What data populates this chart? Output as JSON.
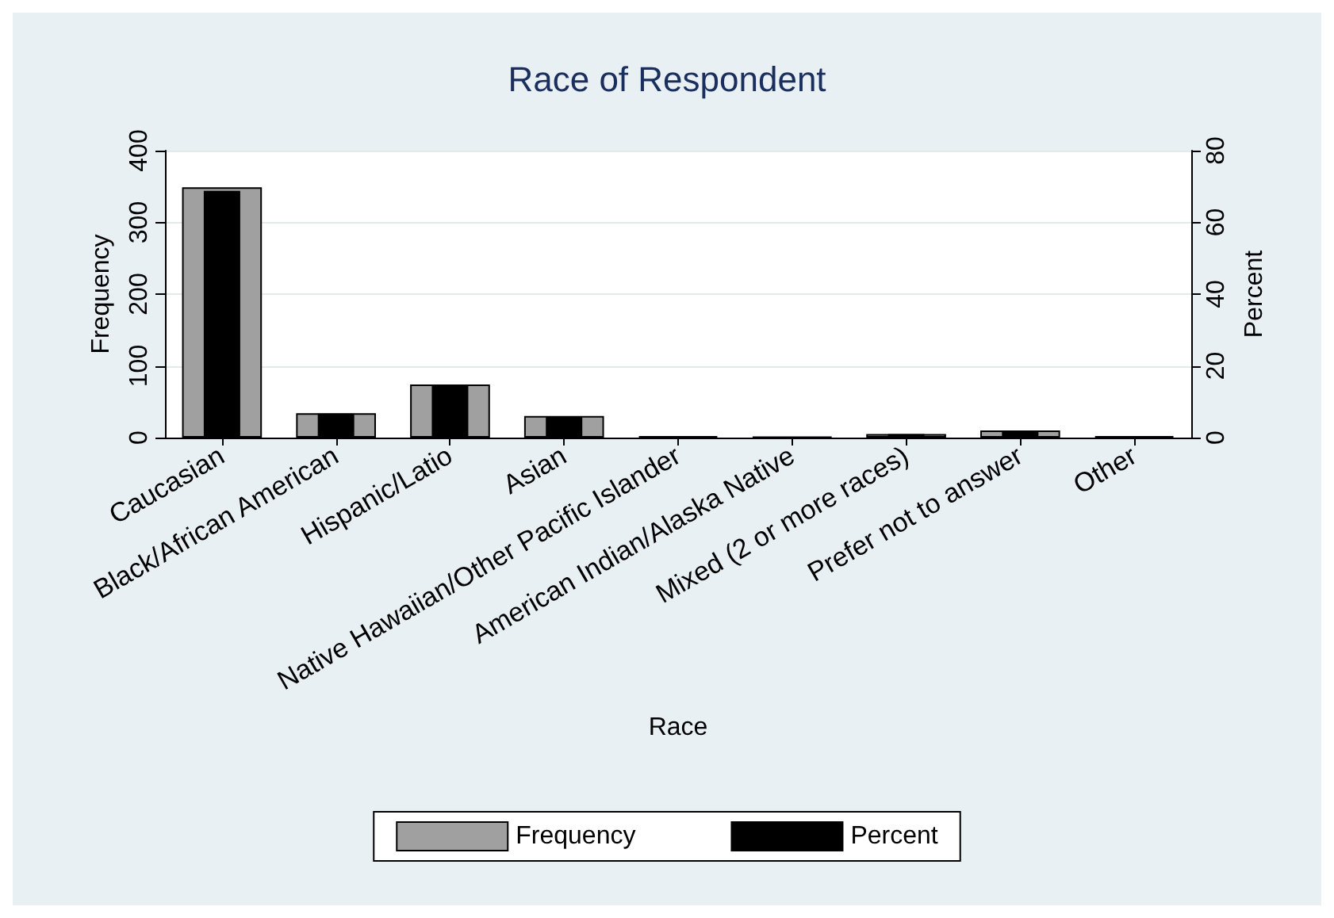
{
  "chart_data": {
    "type": "bar",
    "title": "Race of Respondent",
    "xlabel": "Race",
    "ylabel": "Frequency",
    "y2label": "Percent",
    "categories": [
      "Caucasian",
      "Black/African American",
      "Hispanic/Latio",
      "Asian",
      "Native Hawaiian/Other Pacific Islander",
      "American Indian/Alaska Native",
      "Mixed (2 or more races)",
      "Prefer not to answer",
      "Other"
    ],
    "series": [
      {
        "name": "Frequency",
        "color": "#a0a0a0",
        "values": [
          349,
          34,
          74,
          30,
          2,
          1,
          5,
          10,
          2
        ]
      },
      {
        "name": "Percent",
        "color": "#000000",
        "axis": "y2",
        "values": [
          68.8,
          6.7,
          14.6,
          5.9,
          0.4,
          0.2,
          1,
          2,
          0.4
        ]
      }
    ],
    "ylim": [
      0,
      400
    ],
    "yticks": [
      0,
      100,
      200,
      300,
      400
    ],
    "y2lim": [
      0,
      80
    ],
    "y2ticks": [
      0,
      20,
      40,
      60,
      80
    ],
    "grid": "y",
    "legend": "bottom"
  }
}
